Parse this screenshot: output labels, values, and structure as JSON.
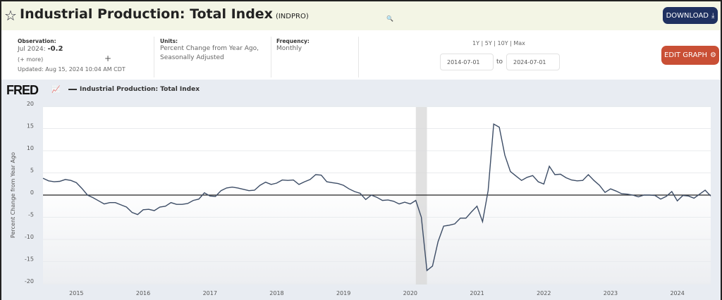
{
  "header": {
    "title": "Industrial Production: Total Index",
    "series_id": "(INDPRO)",
    "download_label": "DOWNLOAD"
  },
  "info": {
    "observation_label": "Observation:",
    "observation_date": "Jul 2024:",
    "observation_value": "-0.2",
    "more": "(+ more)",
    "updated": "Updated: Aug 15, 2024 10:04 AM CDT",
    "units_label": "Units:",
    "units_line1": "Percent Change from Year Ago,",
    "units_line2": "Seasonally Adjusted",
    "frequency_label": "Frequency:",
    "frequency_value": "Monthly",
    "range_links": "1Y | 5Y | 10Y | Max",
    "start_date": "2014-07-01",
    "to": "to",
    "end_date": "2024-07-01",
    "edit_graph_label": "EDIT GRAPH"
  },
  "brand": "FRED",
  "colors": {
    "line": "#3d4d66",
    "download": "#1f3160",
    "edit": "#c94f35",
    "recession": "#d9d9d9"
  },
  "chart_data": {
    "type": "line",
    "title": "Industrial Production: Total Index",
    "ylabel": "Percent Change from Year Ago",
    "xlabel": "",
    "ylim": [
      -20,
      20
    ],
    "yticks": [
      20,
      15,
      10,
      5,
      0,
      -5,
      -10,
      -15,
      -20
    ],
    "xticks": [
      "2015",
      "2016",
      "2017",
      "2018",
      "2019",
      "2020",
      "2021",
      "2022",
      "2023",
      "2024"
    ],
    "x_start": "2014-07",
    "x_end": "2024-07",
    "frequency": "monthly",
    "legend": "top-left",
    "recession": [
      "2020-02",
      "2020-04"
    ],
    "series": [
      {
        "name": "Industrial Production: Total Index",
        "values": [
          3.8,
          3.2,
          3.0,
          3.1,
          3.5,
          3.3,
          2.8,
          1.5,
          0.0,
          -0.6,
          -1.3,
          -2.0,
          -1.7,
          -1.7,
          -2.2,
          -2.7,
          -3.9,
          -4.4,
          -3.3,
          -3.2,
          -3.5,
          -2.7,
          -2.5,
          -1.7,
          -2.1,
          -2.1,
          -1.9,
          -1.2,
          -0.9,
          0.5,
          -0.2,
          -0.3,
          1.0,
          1.6,
          1.8,
          1.6,
          1.3,
          1.0,
          1.1,
          2.2,
          2.9,
          2.4,
          2.7,
          3.4,
          3.3,
          3.4,
          2.4,
          3.0,
          3.5,
          4.6,
          4.5,
          3.0,
          2.8,
          2.6,
          2.2,
          1.4,
          0.8,
          0.4,
          -1.0,
          0.0,
          -0.5,
          -1.2,
          -1.1,
          -1.4,
          -2.0,
          -1.6,
          -2.0,
          -1.2,
          -5.0,
          -17.0,
          -16.0,
          -10.5,
          -7.0,
          -6.8,
          -6.5,
          -5.2,
          -5.2,
          -3.8,
          -2.5,
          -6.0,
          1.0,
          16.0,
          15.3,
          9.0,
          5.3,
          4.3,
          3.3,
          4.0,
          4.4,
          3.0,
          2.5,
          6.5,
          4.6,
          4.7,
          3.9,
          3.4,
          3.2,
          3.3,
          4.6,
          3.3,
          2.2,
          0.6,
          1.4,
          0.9,
          0.3,
          0.2,
          0.0,
          -0.4,
          0.0,
          0.0,
          -0.1,
          -0.9,
          -0.3,
          0.8,
          -1.3,
          -0.1,
          -0.2,
          -0.7,
          0.2,
          1.1,
          -0.2
        ]
      }
    ]
  }
}
